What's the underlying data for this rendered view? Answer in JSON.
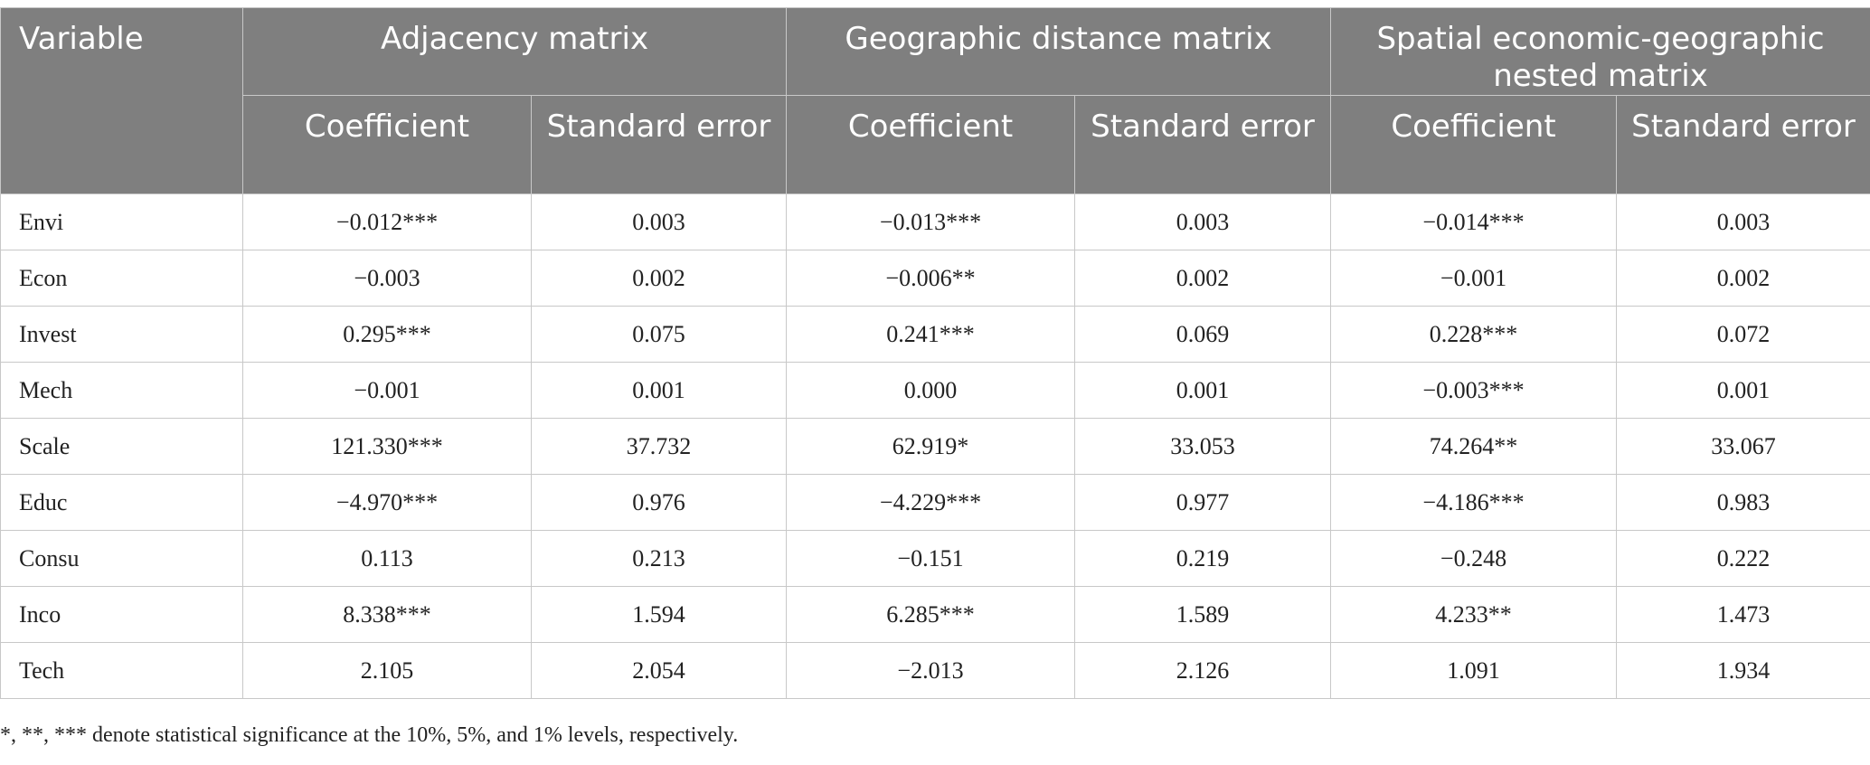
{
  "table": {
    "header": {
      "variable": "Variable",
      "groups": [
        "Adjacency matrix",
        "Geographic distance matrix",
        "Spatial economic-geographic nested matrix"
      ],
      "subheaders": [
        "Coefficient",
        "Standard error",
        "Coefficient",
        "Standard error",
        "Coefficient",
        "Standard error"
      ]
    },
    "rows": [
      [
        "Envi",
        "−0.012***",
        "0.003",
        "−0.013***",
        "0.003",
        "−0.014***",
        "0.003"
      ],
      [
        "Econ",
        "−0.003",
        "0.002",
        "−0.006**",
        "0.002",
        "−0.001",
        "0.002"
      ],
      [
        "Invest",
        "0.295***",
        "0.075",
        "0.241***",
        "0.069",
        "0.228***",
        "0.072"
      ],
      [
        "Mech",
        "−0.001",
        "0.001",
        "0.000",
        "0.001",
        "−0.003***",
        "0.001"
      ],
      [
        "Scale",
        "121.330***",
        "37.732",
        "62.919*",
        "33.053",
        "74.264**",
        "33.067"
      ],
      [
        "Educ",
        "−4.970***",
        "0.976",
        "−4.229***",
        "0.977",
        "−4.186***",
        "0.983"
      ],
      [
        "Consu",
        "0.113",
        "0.213",
        "−0.151",
        "0.219",
        "−0.248",
        "0.222"
      ],
      [
        "Inco",
        "8.338***",
        "1.594",
        "6.285***",
        "1.589",
        "4.233**",
        "1.473"
      ],
      [
        "Tech",
        "2.105",
        "2.054",
        "−2.013",
        "2.126",
        "1.091",
        "1.934"
      ]
    ]
  },
  "footnote": "*, **, *** denote statistical significance at the 10%, 5%, and 1% levels, respectively."
}
